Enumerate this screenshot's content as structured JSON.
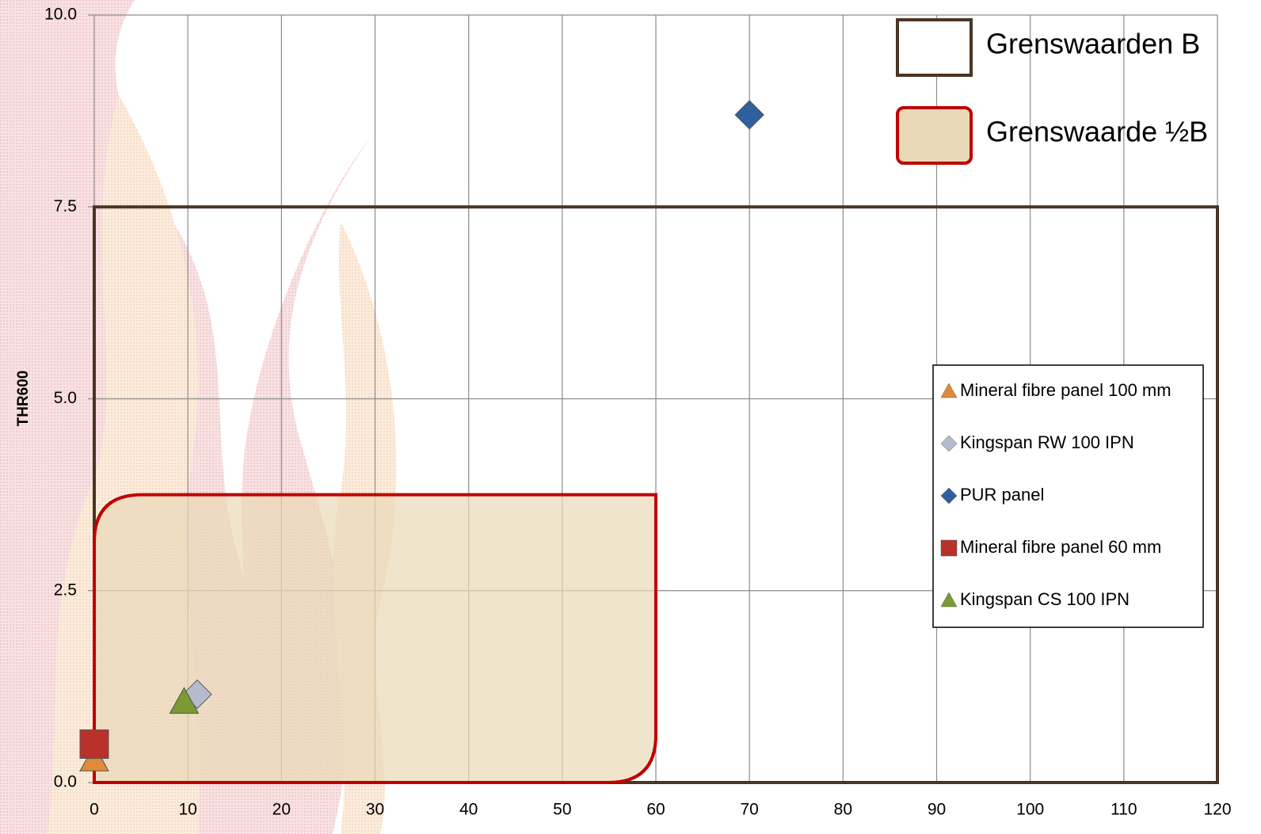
{
  "chart_data": {
    "type": "scatter",
    "y_label": "THR600",
    "xlim": [
      0,
      120
    ],
    "xticks": [
      0,
      10,
      20,
      30,
      40,
      50,
      60,
      70,
      80,
      90,
      100,
      110,
      120
    ],
    "ylim": [
      0,
      10
    ],
    "yticks": [
      {
        "value": 0,
        "label": "0.0"
      },
      2.5,
      {
        "value": 5,
        "label": "5.0"
      },
      7.5,
      {
        "value": 10,
        "label": "10.0"
      }
    ],
    "grid": true,
    "regions": [
      {
        "name": "Grenswaarden B",
        "xlim": [
          0,
          120
        ],
        "ylim": [
          0,
          7.5
        ],
        "color": "#4a3524",
        "fill": "none"
      },
      {
        "name": "Grenswaarde ½B",
        "xlim": [
          0,
          60
        ],
        "ylim": [
          0,
          3.75
        ],
        "color": "#c00000",
        "fill": "#ead9b8"
      }
    ],
    "series": [
      {
        "name": "Mineral fibre panel 100 mm",
        "color": "#e08a3a",
        "marker": "triangle",
        "x": [
          0
        ],
        "values": [
          0.3
        ]
      },
      {
        "name": "Kingspan RW 100 IPN",
        "color": "#b4bccc",
        "marker": "diamond",
        "x": [
          11
        ],
        "values": [
          1.15
        ]
      },
      {
        "name": "PUR panel",
        "color": "#2f5f9f",
        "marker": "diamond",
        "x": [
          70
        ],
        "values": [
          8.7
        ]
      },
      {
        "name": "Mineral fibre panel 60 mm",
        "color": "#b8322b",
        "marker": "square",
        "x": [
          0
        ],
        "values": [
          0.5
        ]
      },
      {
        "name": "Kingspan CS 100 IPN",
        "color": "#7b9a34",
        "marker": "triangle",
        "x": [
          9.6
        ],
        "values": [
          1.05
        ]
      }
    ],
    "legend": "right"
  }
}
